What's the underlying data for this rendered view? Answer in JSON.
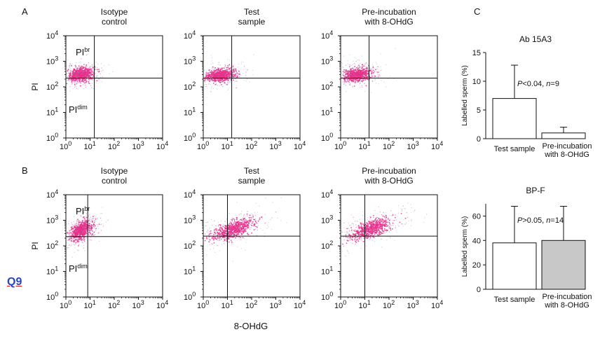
{
  "figure": {
    "axis_label": "8-OHdG",
    "q9": "Q9",
    "scatter_colors": {
      "core": "#e8308a",
      "halo": "#c45aa0",
      "spread": "#7a8fc7"
    }
  },
  "chart_data": [
    {
      "type": "scatter",
      "panel": "A",
      "title": "Isotype control",
      "ylabel": "PI",
      "quadrant_labels": {
        "upper": "PIbr",
        "lower": "PIdim"
      },
      "x_scale": "log",
      "y_scale": "log",
      "xlim": [
        1,
        10000
      ],
      "ylim": [
        1,
        10000
      ],
      "xticks": [
        "10^0",
        "10^1",
        "10^2",
        "10^3",
        "10^4"
      ],
      "yticks": [
        "10^0",
        "10^1",
        "10^2",
        "10^3",
        "10^4"
      ],
      "gates": {
        "x": 15,
        "y": 220
      },
      "population": {
        "x_center": 4,
        "y_center": 300,
        "x_spread_decades": 0.25,
        "y_spread_decades": 0.14,
        "tilt": 0.05
      }
    },
    {
      "type": "scatter",
      "panel": "A",
      "title": "Test sample",
      "x_scale": "log",
      "y_scale": "log",
      "xlim": [
        1,
        10000
      ],
      "ylim": [
        1,
        10000
      ],
      "xticks": [
        "10^0",
        "10^1",
        "10^2",
        "10^3",
        "10^4"
      ],
      "yticks": [
        "10^0",
        "10^1",
        "10^2",
        "10^3",
        "10^4"
      ],
      "gates": {
        "x": 15,
        "y": 220
      },
      "population": {
        "x_center": 5,
        "y_center": 280,
        "x_spread_decades": 0.3,
        "y_spread_decades": 0.12,
        "tilt": 0.08
      }
    },
    {
      "type": "scatter",
      "panel": "A",
      "title": "Pre-incubation with 8-OHdG",
      "x_scale": "log",
      "y_scale": "log",
      "xlim": [
        1,
        10000
      ],
      "ylim": [
        1,
        10000
      ],
      "xticks": [
        "10^0",
        "10^1",
        "10^2",
        "10^3",
        "10^4"
      ],
      "yticks": [
        "10^0",
        "10^1",
        "10^2",
        "10^3",
        "10^4"
      ],
      "gates": {
        "x": 15,
        "y": 220
      },
      "population": {
        "x_center": 5,
        "y_center": 300,
        "x_spread_decades": 0.28,
        "y_spread_decades": 0.13,
        "tilt": 0.08
      }
    },
    {
      "type": "scatter",
      "panel": "B",
      "title": "Isotype control",
      "ylabel": "PI",
      "quadrant_labels": {
        "upper": "PIbr",
        "lower": "PIdim"
      },
      "x_scale": "log",
      "y_scale": "log",
      "xlim": [
        1,
        10000
      ],
      "ylim": [
        1,
        10000
      ],
      "xticks": [
        "10^0",
        "10^1",
        "10^2",
        "10^3",
        "10^4"
      ],
      "yticks": [
        "10^0",
        "10^1",
        "10^2",
        "10^3",
        "10^4"
      ],
      "gates": {
        "x": 8,
        "y": 230
      },
      "population": {
        "x_center": 4,
        "y_center": 400,
        "x_spread_decades": 0.22,
        "y_spread_decades": 0.17,
        "tilt": 0.35
      }
    },
    {
      "type": "scatter",
      "panel": "B",
      "title": "Test sample",
      "x_scale": "log",
      "y_scale": "log",
      "xlim": [
        1,
        10000
      ],
      "ylim": [
        1,
        10000
      ],
      "xticks": [
        "10^0",
        "10^1",
        "10^2",
        "10^3",
        "10^4"
      ],
      "yticks": [
        "10^0",
        "10^1",
        "10^2",
        "10^3",
        "10^4"
      ],
      "gates": {
        "x": 10,
        "y": 240
      },
      "population": {
        "x_center": 18,
        "y_center": 450,
        "x_spread_decades": 0.42,
        "y_spread_decades": 0.16,
        "tilt": 0.3
      }
    },
    {
      "type": "scatter",
      "panel": "B",
      "title": "Pre-incubation with 8-OHdG",
      "x_scale": "log",
      "y_scale": "log",
      "xlim": [
        1,
        10000
      ],
      "ylim": [
        1,
        10000
      ],
      "xticks": [
        "10^0",
        "10^1",
        "10^2",
        "10^3",
        "10^4"
      ],
      "yticks": [
        "10^0",
        "10^1",
        "10^2",
        "10^3",
        "10^4"
      ],
      "gates": {
        "x": 10,
        "y": 240
      },
      "population": {
        "x_center": 18,
        "y_center": 460,
        "x_spread_decades": 0.42,
        "y_spread_decades": 0.16,
        "tilt": 0.3
      }
    },
    {
      "type": "bar",
      "panel": "C",
      "title": "Ab 15A3",
      "ylabel": "Labelled sperm (%)",
      "ylim": [
        0,
        15
      ],
      "yticks": [
        0,
        5,
        10,
        15
      ],
      "categories": [
        "Test sample",
        "Pre-incubation with 8-OHdG"
      ],
      "values": [
        7,
        1
      ],
      "errors": [
        5.8,
        1
      ],
      "bar_colors": [
        "#ffffff",
        "#ffffff"
      ],
      "annotation": {
        "stat": "P",
        "op": "<0.04, ",
        "nvar": "n",
        "nval": "=9"
      }
    },
    {
      "type": "bar",
      "panel": "C",
      "title": "BP-F",
      "ylabel": "Labelled sperm (%)",
      "ylim": [
        0,
        70
      ],
      "yticks": [
        0,
        20,
        40,
        60
      ],
      "categories": [
        "Test sample",
        "Pre-incubation with 8-OHdG"
      ],
      "values": [
        38,
        40
      ],
      "errors": [
        30,
        28
      ],
      "bar_colors": [
        "#ffffff",
        "#c8c8c8"
      ],
      "annotation": {
        "stat": "P",
        "op": ">0.05, ",
        "nvar": "n",
        "nval": "=14"
      }
    }
  ],
  "panel_letters": [
    "A",
    "B",
    "C"
  ]
}
